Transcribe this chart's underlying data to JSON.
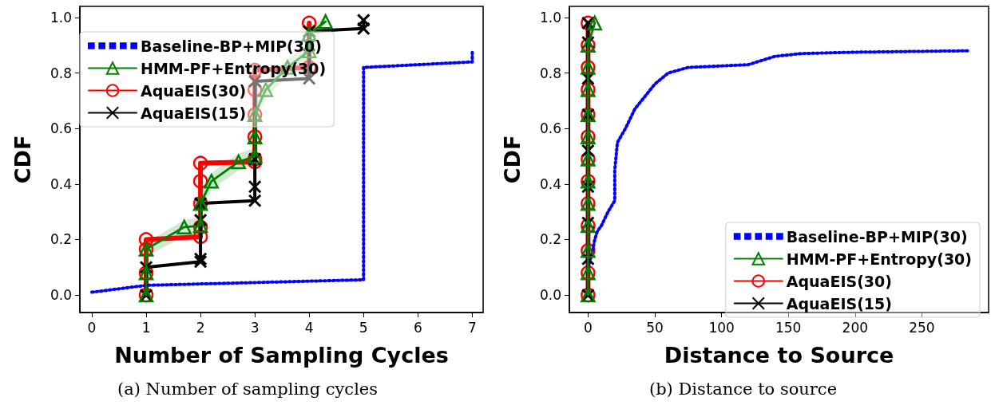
{
  "chart_data": [
    {
      "type": "line",
      "xlabel": "Number of Sampling Cycles",
      "ylabel": "CDF",
      "annotations": [
        "(a) Number of sampling cycles"
      ],
      "xlim": [
        -0.22,
        7.2
      ],
      "xticks": [
        0,
        1,
        2,
        3,
        4,
        5,
        6,
        7
      ],
      "ylim": [
        -0.063,
        1.04
      ],
      "yticks": [
        {
          "value": 0,
          "label": "0.0"
        },
        {
          "value": 0.2,
          "label": "0.2"
        },
        {
          "value": 0.4,
          "label": "0.4"
        },
        {
          "value": 0.6,
          "label": "0.6"
        },
        {
          "value": 0.8,
          "label": "0.8"
        },
        {
          "value": 1,
          "label": "1.0"
        }
      ],
      "grid": false,
      "legend": "top left",
      "series": [
        {
          "name": "Baseline-BP+MIP(30)",
          "color": "#0000ff",
          "line_style": "dotted",
          "marker": "none",
          "x": [
            0,
            1,
            2,
            3,
            4,
            5,
            5,
            6,
            7,
            7
          ],
          "values": [
            0.01,
            0.035,
            0.04,
            0.045,
            0.05,
            0.055,
            0.82,
            0.83,
            0.84,
            0.88
          ]
        },
        {
          "name": "HMM-PF+Entropy(30)",
          "color": "#008000",
          "line_style": "solid",
          "marker": "triangle",
          "x": [
            1,
            1,
            1,
            1.7,
            2,
            2,
            2.2,
            2.7,
            3,
            3,
            3,
            3.2,
            3.6,
            4,
            4,
            4.3
          ],
          "values": [
            0,
            0.08,
            0.165,
            0.245,
            0.25,
            0.33,
            0.41,
            0.48,
            0.5,
            0.57,
            0.65,
            0.74,
            0.82,
            0.88,
            0.94,
            0.985
          ],
          "lower": [
            0,
            0.05,
            0.14,
            0.21,
            0.22,
            0.3,
            0.38,
            0.45,
            0.47,
            0.54,
            0.62,
            0.71,
            0.79,
            0.85,
            0.91,
            0.96
          ],
          "upper": [
            0,
            0.11,
            0.19,
            0.27,
            0.28,
            0.36,
            0.44,
            0.51,
            0.53,
            0.6,
            0.68,
            0.77,
            0.85,
            0.91,
            0.97,
            1.0
          ]
        },
        {
          "name": "AquaEIS(30)",
          "color": "#ff0000",
          "line_style": "solid",
          "marker": "circle",
          "x": [
            1,
            1,
            1,
            1,
            2,
            2,
            2,
            2,
            2,
            3,
            3,
            3,
            3,
            3,
            3,
            4,
            4
          ],
          "values": [
            0,
            0.08,
            0.165,
            0.2,
            0.21,
            0.245,
            0.33,
            0.41,
            0.475,
            0.48,
            0.49,
            0.57,
            0.65,
            0.74,
            0.81,
            0.82,
            0.98
          ]
        },
        {
          "name": "AquaEIS(15)",
          "color": "#000000",
          "line_style": "solid",
          "marker": "cross",
          "x": [
            1,
            1,
            2,
            2,
            2,
            2,
            3,
            3,
            3,
            3,
            4,
            4,
            4,
            5,
            5
          ],
          "values": [
            0,
            0.1,
            0.12,
            0.13,
            0.27,
            0.33,
            0.34,
            0.39,
            0.49,
            0.77,
            0.78,
            0.9,
            0.95,
            0.96,
            0.99
          ]
        }
      ]
    },
    {
      "type": "line",
      "xlabel": "Distance to Source",
      "ylabel": "CDF",
      "annotations": [
        "(b) Distance to source"
      ],
      "xlim": [
        -14,
        300
      ],
      "xticks": [
        0,
        50,
        100,
        150,
        200,
        250
      ],
      "ylim": [
        -0.063,
        1.04
      ],
      "yticks": [
        {
          "value": 0,
          "label": "0.0"
        },
        {
          "value": 0.2,
          "label": "0.2"
        },
        {
          "value": 0.4,
          "label": "0.4"
        },
        {
          "value": 0.6,
          "label": "0.6"
        },
        {
          "value": 0.8,
          "label": "0.8"
        },
        {
          "value": 1,
          "label": "1.0"
        }
      ],
      "grid": false,
      "legend": "bottom right",
      "series": [
        {
          "name": "Baseline-BP+MIP(30)",
          "color": "#0000ff",
          "line_style": "dotted",
          "marker": "none",
          "x": [
            0,
            3,
            5,
            7,
            10,
            15,
            20,
            20,
            20,
            22,
            28,
            35,
            40,
            50,
            60,
            75,
            120,
            140,
            160,
            200,
            285
          ],
          "values": [
            0.1,
            0.15,
            0.2,
            0.23,
            0.25,
            0.3,
            0.34,
            0.4,
            0.45,
            0.55,
            0.6,
            0.67,
            0.7,
            0.76,
            0.8,
            0.82,
            0.83,
            0.86,
            0.87,
            0.875,
            0.88
          ]
        },
        {
          "name": "HMM-PF+Entropy(30)",
          "color": "#008000",
          "line_style": "solid",
          "marker": "triangle",
          "x": [
            0,
            0,
            0,
            0,
            0,
            0,
            0,
            0,
            0,
            0,
            0,
            0,
            5
          ],
          "values": [
            0,
            0.08,
            0.16,
            0.25,
            0.33,
            0.41,
            0.49,
            0.57,
            0.65,
            0.74,
            0.82,
            0.9,
            0.98
          ]
        },
        {
          "name": "AquaEIS(30)",
          "color": "#ff0000",
          "line_style": "solid",
          "marker": "circle",
          "x": [
            0,
            0,
            0,
            0,
            0,
            0,
            0,
            0,
            0,
            0,
            0,
            0,
            0
          ],
          "values": [
            0,
            0.08,
            0.16,
            0.25,
            0.33,
            0.41,
            0.49,
            0.57,
            0.65,
            0.74,
            0.82,
            0.9,
            0.98
          ]
        },
        {
          "name": "AquaEIS(15)",
          "color": "#000000",
          "line_style": "solid",
          "marker": "cross",
          "x": [
            0,
            0,
            0,
            0,
            0,
            0,
            0,
            0,
            0
          ],
          "values": [
            0,
            0.13,
            0.26,
            0.39,
            0.52,
            0.65,
            0.78,
            0.91,
            0.98
          ]
        }
      ]
    }
  ]
}
